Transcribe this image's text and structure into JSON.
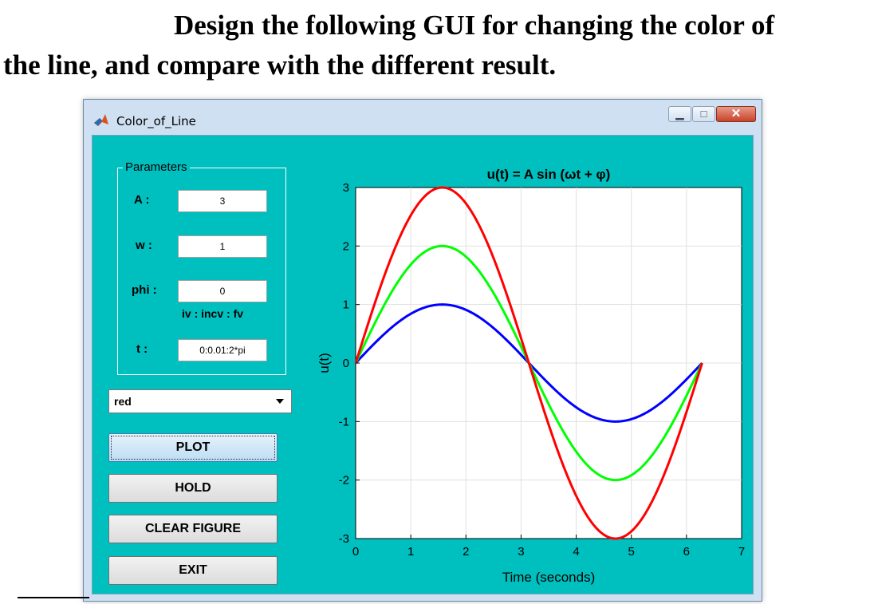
{
  "heading": {
    "line1": "Design the following GUI for changing the color of",
    "line2": "the line, and compare with the different result."
  },
  "window": {
    "title": "Color_of_Line",
    "icon": "matlab-icon",
    "controls": {
      "minimize": "minimize-icon",
      "maximize": "maximize-icon",
      "close": "close-icon"
    }
  },
  "panel": {
    "title": "Parameters",
    "A_label": "A :",
    "A_value": "3",
    "w_label": "w :",
    "w_value": "1",
    "phi_label": "phi :",
    "phi_value": "0",
    "hint": "iv : incv : fv",
    "t_label": "t :",
    "t_value": "0:0.01:2*pi"
  },
  "color_select": {
    "selected": "red"
  },
  "buttons": {
    "plot": "PLOT",
    "hold": "HOLD",
    "clear": "CLEAR FIGURE",
    "exit": "EXIT"
  },
  "colors": {
    "background": "#00bfbf",
    "red": "#ff0000",
    "green": "#00ff00",
    "blue": "#0000ff"
  },
  "chart_data": {
    "type": "line",
    "title": "u(t) = A sin (ωt + φ)",
    "xlabel": "Time (seconds)",
    "ylabel": "u(t)",
    "xlim": [
      0,
      7
    ],
    "ylim": [
      -3,
      3
    ],
    "xticks": [
      0,
      1,
      2,
      3,
      4,
      5,
      6,
      7
    ],
    "yticks": [
      -3,
      -2,
      -1,
      0,
      1,
      2,
      3
    ],
    "grid": true,
    "series": [
      {
        "color": "#0000ff",
        "amplitude": 1,
        "omega": 1,
        "phi": 0,
        "t_range": [
          0,
          6.2832
        ]
      },
      {
        "color": "#00ff00",
        "amplitude": 2,
        "omega": 1,
        "phi": 0,
        "t_range": [
          0,
          6.2832
        ]
      },
      {
        "color": "#ff0000",
        "amplitude": 3,
        "omega": 1,
        "phi": 0,
        "t_range": [
          0,
          6.2832
        ]
      }
    ]
  }
}
